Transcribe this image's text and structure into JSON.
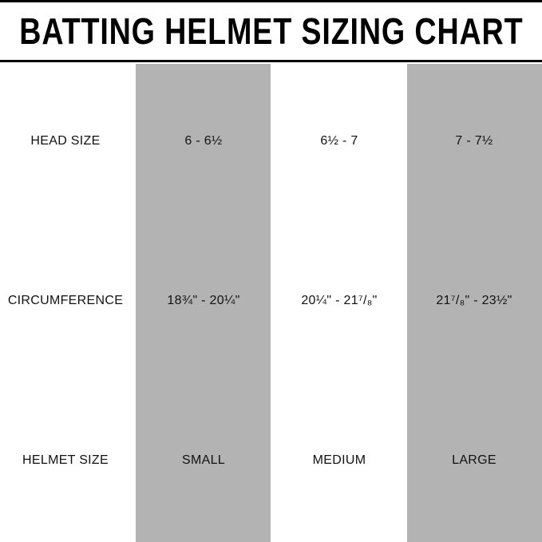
{
  "title": "BATTING HELMET SIZING CHART",
  "colors": {
    "shaded_column": "#b3b3b3",
    "rule": "#000000"
  },
  "table": {
    "columns": [
      "SMALL",
      "MEDIUM",
      "LARGE"
    ],
    "rows": [
      {
        "label": "HEAD SIZE",
        "values": [
          "6 - 6½",
          "6½ - 7",
          "7 - 7½"
        ]
      },
      {
        "label": "CIRCUMFERENCE",
        "values": [
          "18¾\" - 20¼\"",
          "20¼\" - 21⁷/₈\"",
          "21⁷/₈\" - 23½\""
        ]
      },
      {
        "label": "HELMET SIZE",
        "values": [
          "SMALL",
          "MEDIUM",
          "LARGE"
        ]
      }
    ]
  }
}
